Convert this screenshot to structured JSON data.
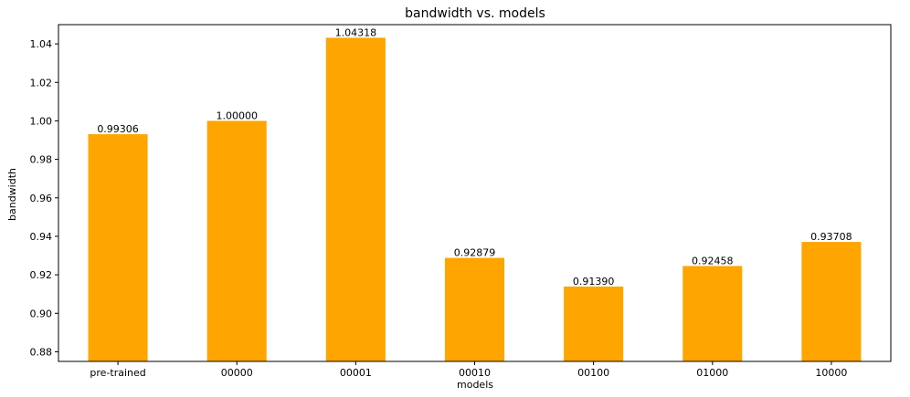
{
  "chart_data": {
    "type": "bar",
    "title": "bandwidth vs. models",
    "xlabel": "models",
    "ylabel": "bandwidth",
    "categories": [
      "pre-trained",
      "00000",
      "00001",
      "00010",
      "00100",
      "01000",
      "10000"
    ],
    "values": [
      0.99306,
      1.0,
      1.04318,
      0.92879,
      0.9139,
      0.92458,
      0.93708
    ],
    "value_labels": [
      "0.99306",
      "1.00000",
      "1.04318",
      "0.92879",
      "0.91390",
      "0.92458",
      "0.93708"
    ],
    "ylim": [
      0.875,
      1.05
    ],
    "yticks": [
      0.88,
      0.9,
      0.92,
      0.94,
      0.96,
      0.98,
      1.0,
      1.02,
      1.04
    ],
    "ytick_labels": [
      "0.88",
      "0.90",
      "0.92",
      "0.94",
      "0.96",
      "0.98",
      "1.00",
      "1.02",
      "1.04"
    ],
    "bar_color": "#ffa500",
    "grid": false,
    "legend": "none"
  }
}
